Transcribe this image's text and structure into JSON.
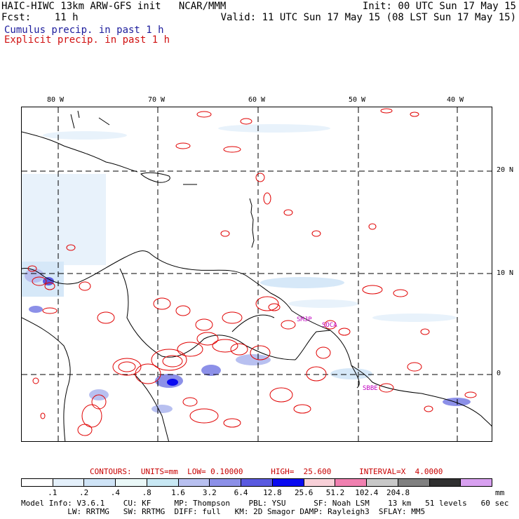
{
  "header": {
    "left_line1": "HAIC-HIWC 13km ARW-GFS init   NCAR/MMM",
    "right_line1": "Init: 00 UTC Sun 17 May 15",
    "left_line2": "Fcst:    11 h",
    "right_line2": "Valid: 11 UTC Sun 17 May 15 (08 LST Sun 17 May 15)",
    "line3": "Cumulus precip. in past 1 h",
    "line4": "Explicit precip. in past 1 h",
    "line3_color": "#1c1c9c",
    "line4_color": "#d01010"
  },
  "map": {
    "lon_labels": [
      "80 W",
      "70 W",
      "60 W",
      "50 W",
      "40 W"
    ],
    "lat_labels": [
      "20 N",
      "10 N",
      "0"
    ],
    "stations": [
      "SMJP",
      "SOCA",
      "SBBE"
    ],
    "station_color": "#c000c0",
    "contour_color": "#e00000",
    "coast_color": "#000000"
  },
  "contours_line": {
    "text": "CONTOURS:  UNITS=mm  LOW= 0.10000      HIGH=  25.600      INTERVAL=X  4.0000",
    "color": "#c80000"
  },
  "colorbar": {
    "colors": [
      "#ffffff",
      "#e4f0fb",
      "#cfe4f7",
      "#eaf8f8",
      "#c8e8f4",
      "#b8c0f0",
      "#8c90e8",
      "#5a5ae0",
      "#0a0af0",
      "#f8d0d8",
      "#f080b0",
      "#c8c8c8",
      "#808080",
      "#303030",
      "#d8a0f0"
    ],
    "labels": [
      ".1",
      ".2",
      ".4",
      ".8",
      "1.6",
      "3.2",
      "6.4",
      "12.8",
      "25.6",
      "51.2",
      "102.4",
      "204.8"
    ],
    "unit": "mm"
  },
  "footer": {
    "line1": "Model Info: V3.6.1    CU: KF     MP: Thompson    PBL: YSU      SF: Noah LSM    13 km   51 levels   60 sec",
    "line2": "          LW: RRTMG   SW: RRTMG  DIFF: full   KM: 2D Smagor DAMP: Rayleigh3  SFLAY: MM5"
  }
}
